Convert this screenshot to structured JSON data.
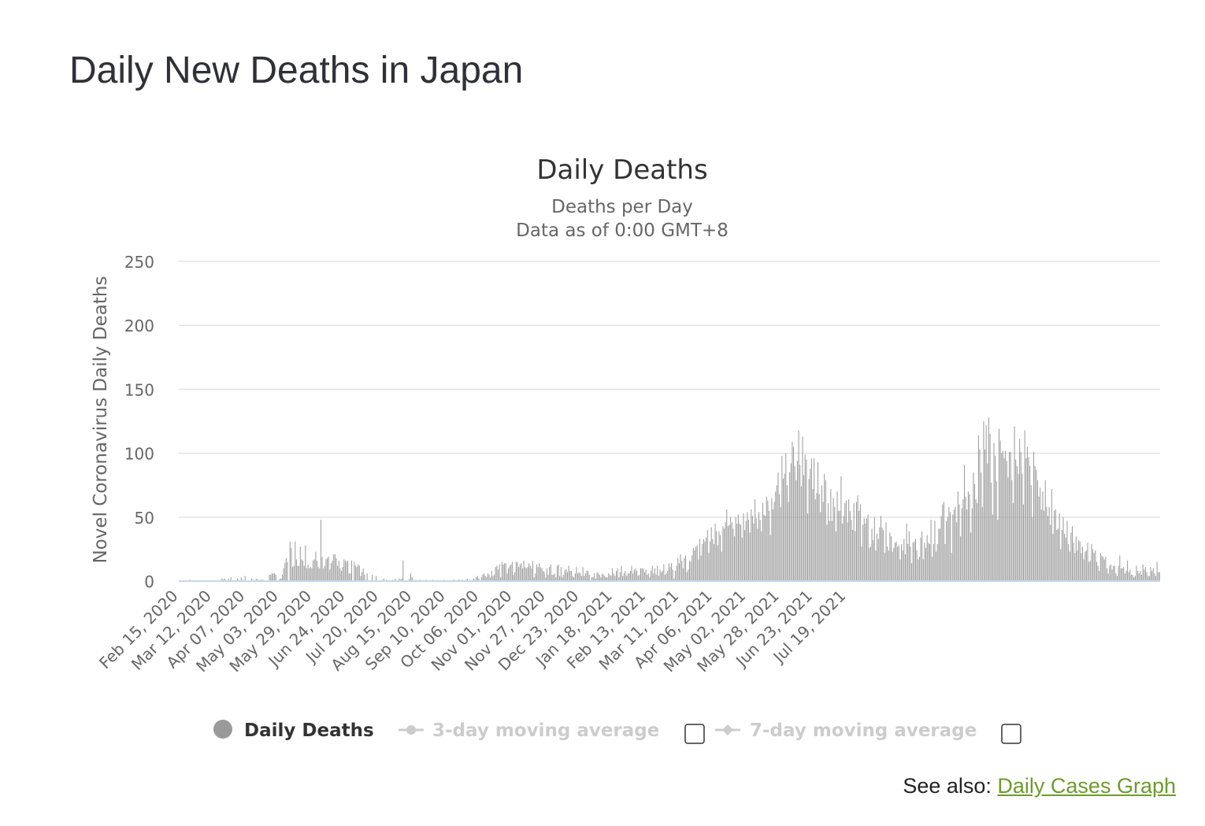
{
  "page": {
    "title": "Daily New Deaths in Japan"
  },
  "footer": {
    "see_also_label": "See also:",
    "link_text": "Daily Cases Graph"
  },
  "colors": {
    "bar": "#9a9a9a",
    "grid": "#e3e3e3",
    "axis_baseline": "#c8d7ec",
    "legend_inactive": "#cccccc",
    "link": "#6c9c2c"
  },
  "legend": {
    "placement": "bottom",
    "items": [
      {
        "label": "Daily Deaths",
        "active": true,
        "icon": "circle-marker-icon"
      },
      {
        "label": "3-day moving average",
        "active": false,
        "icon": "circle-line-marker-icon",
        "checkbox": false
      },
      {
        "label": "7-day moving average",
        "active": false,
        "icon": "diamond-line-marker-icon",
        "checkbox": false
      }
    ]
  },
  "chart_data": {
    "type": "bar",
    "title": "Daily Deaths",
    "subtitle_lines": [
      "Deaths per Day",
      "Data as of 0:00 GMT+8"
    ],
    "ylabel": "Novel Coronavirus Daily Deaths",
    "xlabel": "",
    "ylim": [
      0,
      250
    ],
    "yticks": [
      0,
      50,
      100,
      150,
      200,
      250
    ],
    "grid": true,
    "x_start": "Feb 15, 2020",
    "x_end": "Jul 31, 2021",
    "xticks": [
      "Feb 15, 2020",
      "Mar 12, 2020",
      "Apr 07, 2020",
      "May 03, 2020",
      "May 29, 2020",
      "Jun 24, 2020",
      "Jul 20, 2020",
      "Aug 15, 2020",
      "Sep 10, 2020",
      "Oct 06, 2020",
      "Nov 01, 2020",
      "Nov 27, 2020",
      "Dec 23, 2020",
      "Jan 18, 2021",
      "Feb 13, 2021",
      "Mar 11, 2021",
      "Apr 06, 2021",
      "May 02, 2021",
      "May 28, 2021",
      "Jun 23, 2021",
      "Jul 19, 2021"
    ],
    "series": [
      {
        "name": "Daily Deaths",
        "values": [
          0,
          0,
          0,
          0,
          0,
          0,
          0,
          0,
          1,
          0,
          0,
          0,
          0,
          0,
          0,
          0,
          0,
          0,
          0,
          0,
          0,
          0,
          0,
          0,
          0,
          0,
          0,
          0,
          0,
          0,
          0,
          0,
          1,
          2,
          1,
          2,
          1,
          0,
          2,
          0,
          3,
          0,
          0,
          0,
          0,
          2,
          1,
          0,
          3,
          1,
          0,
          4,
          0,
          0,
          0,
          0,
          2,
          1,
          0,
          1,
          2,
          1,
          0,
          1,
          1,
          1,
          0,
          0,
          0,
          0,
          5,
          5,
          6,
          6,
          6,
          5,
          0,
          0,
          2,
          2,
          5,
          10,
          14,
          18,
          15,
          0,
          31,
          26,
          11,
          12,
          31,
          17,
          12,
          12,
          27,
          17,
          16,
          12,
          28,
          10,
          13,
          10,
          11,
          10,
          16,
          17,
          23,
          16,
          11,
          10,
          48,
          19,
          10,
          12,
          17,
          18,
          19,
          9,
          14,
          16,
          21,
          21,
          18,
          12,
          16,
          10,
          8,
          11,
          17,
          16,
          15,
          16,
          6,
          6,
          16,
          0,
          15,
          12,
          11,
          13,
          12,
          4,
          7,
          10,
          5,
          0,
          6,
          0,
          0,
          0,
          5,
          0,
          0,
          4,
          0,
          0,
          0,
          0,
          1,
          2,
          0,
          1,
          0,
          0,
          0,
          0,
          1,
          0,
          2,
          0,
          0,
          2,
          1,
          2,
          16,
          0,
          0,
          0,
          0,
          2,
          6,
          3,
          1,
          0,
          1,
          0,
          0,
          1,
          0,
          0,
          0,
          0,
          1,
          0,
          0,
          0,
          0,
          1,
          0,
          0,
          0,
          0,
          0,
          0,
          0,
          0,
          1,
          0,
          0,
          0,
          0,
          0,
          0,
          1,
          1,
          0,
          0,
          1,
          1,
          0,
          1,
          0,
          0,
          1,
          2,
          0,
          1,
          0,
          1,
          2,
          1,
          3,
          4,
          2,
          0,
          3,
          5,
          6,
          4,
          3,
          6,
          5,
          3,
          8,
          4,
          5,
          11,
          12,
          9,
          13,
          3,
          15,
          13,
          14,
          14,
          6,
          10,
          12,
          13,
          15,
          5,
          7,
          15,
          15,
          11,
          13,
          14,
          10,
          16,
          11,
          10,
          11,
          14,
          12,
          10,
          16,
          3,
          6,
          13,
          11,
          14,
          11,
          10,
          8,
          7,
          3,
          10,
          5,
          11,
          13,
          5,
          5,
          6,
          3,
          12,
          13,
          4,
          11,
          3,
          5,
          9,
          9,
          7,
          12,
          8,
          8,
          4,
          3,
          6,
          11,
          6,
          7,
          6,
          4,
          11,
          4,
          6,
          8,
          8,
          5,
          0,
          3,
          3,
          6,
          2,
          7,
          6,
          5,
          3,
          6,
          5,
          4,
          3,
          3,
          6,
          5,
          4,
          10,
          6,
          4,
          8,
          10,
          3,
          7,
          12,
          4,
          6,
          8,
          4,
          6,
          6,
          8,
          12,
          6,
          9,
          10,
          8,
          4,
          5,
          10,
          10,
          10,
          7,
          9,
          5,
          6,
          3,
          8,
          12,
          6,
          10,
          5,
          12,
          4,
          9,
          7,
          8,
          13,
          5,
          6,
          8,
          14,
          11,
          14,
          9,
          2,
          8,
          12,
          18,
          14,
          21,
          16,
          10,
          18,
          20,
          7,
          9,
          16,
          15,
          20,
          26,
          24,
          27,
          28,
          17,
          33,
          20,
          29,
          33,
          31,
          34,
          40,
          22,
          31,
          42,
          33,
          29,
          45,
          39,
          28,
          39,
          36,
          23,
          43,
          41,
          46,
          56,
          43,
          44,
          50,
          46,
          41,
          35,
          50,
          45,
          52,
          45,
          44,
          34,
          53,
          40,
          47,
          54,
          48,
          38,
          56,
          51,
          45,
          64,
          49,
          41,
          54,
          48,
          39,
          61,
          52,
          51,
          66,
          63,
          55,
          36,
          65,
          56,
          62,
          70,
          75,
          85,
          68,
          58,
          98,
          80,
          84,
          100,
          75,
          62,
          85,
          92,
          109,
          105,
          90,
          79,
          94,
          118,
          91,
          74,
          113,
          83,
          99,
          95,
          53,
          80,
          88,
          96,
          72,
          96,
          64,
          69,
          93,
          68,
          54,
          75,
          62,
          84,
          79,
          44,
          61,
          47,
          72,
          47,
          65,
          58,
          39,
          70,
          55,
          55,
          82,
          45,
          51,
          61,
          63,
          46,
          64,
          55,
          48,
          40,
          61,
          39,
          62,
          67,
          55,
          60,
          27,
          44,
          49,
          45,
          49,
          52,
          26,
          27,
          41,
          32,
          50,
          24,
          37,
          33,
          42,
          51,
          42,
          40,
          22,
          46,
          27,
          24,
          38,
          35,
          23,
          26,
          30,
          31,
          27,
          28,
          17,
          29,
          24,
          33,
          21,
          45,
          29,
          39,
          27,
          14,
          30,
          31,
          33,
          24,
          17,
          19,
          34,
          39,
          17,
          30,
          26,
          36,
          30,
          29,
          48,
          19,
          29,
          47,
          23,
          29,
          41,
          41,
          51,
          60,
          62,
          29,
          47,
          50,
          58,
          54,
          22,
          52,
          56,
          58,
          46,
          70,
          60,
          35,
          57,
          64,
          91,
          66,
          56,
          70,
          68,
          38,
          57,
          85,
          76,
          64,
          61,
          114,
          103,
          85,
          58,
          125,
          103,
          122,
          92,
          128,
          115,
          77,
          52,
          108,
          98,
          78,
          48,
          119,
          110,
          100,
          102,
          96,
          102,
          94,
          81,
          101,
          101,
          79,
          61,
          121,
          95,
          90,
          84,
          111,
          101,
          84,
          60,
          118,
          96,
          105,
          97,
          90,
          75,
          50,
          101,
          90,
          87,
          79,
          66,
          73,
          56,
          70,
          55,
          79,
          58,
          51,
          58,
          44,
          72,
          37,
          55,
          56,
          40,
          41,
          53,
          25,
          40,
          50,
          37,
          34,
          47,
          29,
          23,
          38,
          43,
          30,
          22,
          35,
          24,
          32,
          31,
          22,
          27,
          17,
          23,
          24,
          30,
          15,
          16,
          29,
          25,
          22,
          24,
          15,
          12,
          8,
          22,
          20,
          19,
          17,
          19,
          10,
          6,
          12,
          13,
          9,
          12,
          12,
          6,
          4,
          12,
          20,
          10,
          10,
          11,
          6,
          8,
          16,
          7,
          9,
          5,
          5,
          3,
          4,
          12,
          8,
          6,
          8,
          5,
          13,
          9,
          11,
          7,
          4,
          4,
          11,
          8,
          10,
          6,
          4,
          15,
          7,
          7
        ]
      }
    ]
  }
}
